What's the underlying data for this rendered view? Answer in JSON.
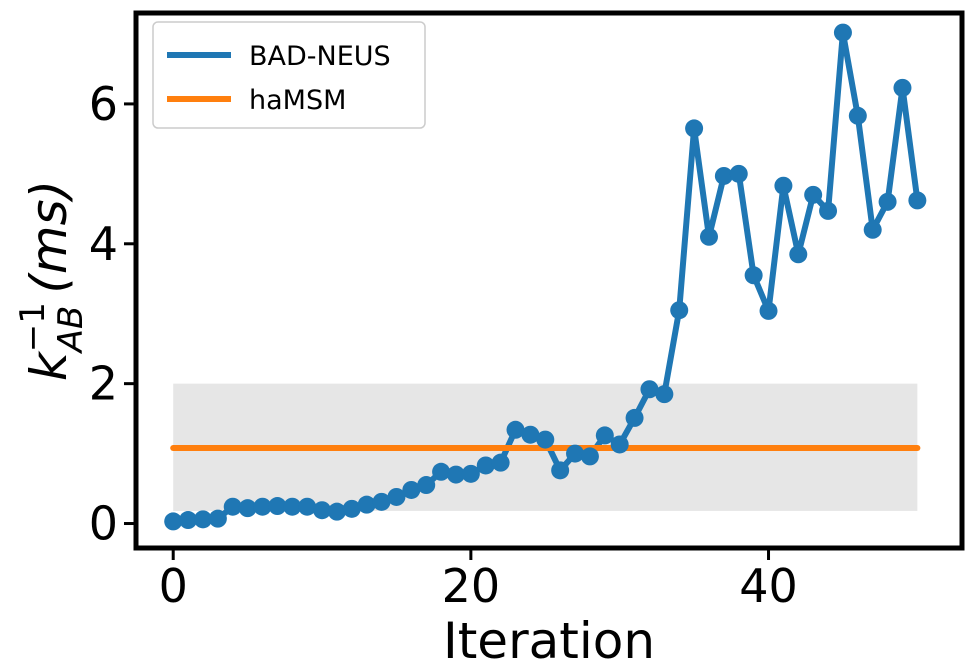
{
  "chart_data": {
    "type": "line",
    "title": "",
    "xlabel": "Iteration",
    "ylabel": {
      "base": "k",
      "subscript": "AB",
      "superscript": "−1",
      "unit": "(ms)"
    },
    "xlim": [
      -2.5,
      53
    ],
    "ylim": [
      -0.35,
      7.3
    ],
    "xticks": [
      0,
      20,
      40
    ],
    "yticks": [
      0,
      2,
      4,
      6
    ],
    "grid": false,
    "legend_position": "top-left",
    "series": [
      {
        "name": "BAD-NEUS",
        "color": "#1f77b4",
        "marker": "circle",
        "x": [
          0,
          1,
          2,
          3,
          4,
          5,
          6,
          7,
          8,
          9,
          10,
          11,
          12,
          13,
          14,
          15,
          16,
          17,
          18,
          19,
          20,
          21,
          22,
          23,
          24,
          25,
          26,
          27,
          28,
          29,
          30,
          31,
          32,
          33,
          34,
          35,
          36,
          37,
          38,
          39,
          40,
          41,
          42,
          43,
          44,
          45,
          46,
          47,
          48,
          49,
          50
        ],
        "y": [
          0.03,
          0.05,
          0.06,
          0.07,
          0.24,
          0.22,
          0.24,
          0.25,
          0.24,
          0.24,
          0.19,
          0.17,
          0.21,
          0.27,
          0.31,
          0.38,
          0.48,
          0.55,
          0.74,
          0.7,
          0.71,
          0.83,
          0.87,
          1.34,
          1.27,
          1.2,
          0.76,
          1.0,
          0.96,
          1.26,
          1.13,
          1.51,
          1.92,
          1.85,
          3.05,
          5.65,
          4.1,
          4.97,
          5.0,
          3.55,
          3.04,
          4.83,
          3.85,
          4.7,
          4.47,
          7.02,
          5.83,
          4.2,
          4.6,
          6.23,
          4.62
        ]
      },
      {
        "name": "haMSM",
        "color": "#ff7f0e",
        "marker": "none",
        "x": [
          0,
          50
        ],
        "y": [
          1.08,
          1.08
        ],
        "band": {
          "low": 0.18,
          "high": 2.0,
          "color": "#e6e6e6"
        }
      }
    ]
  }
}
